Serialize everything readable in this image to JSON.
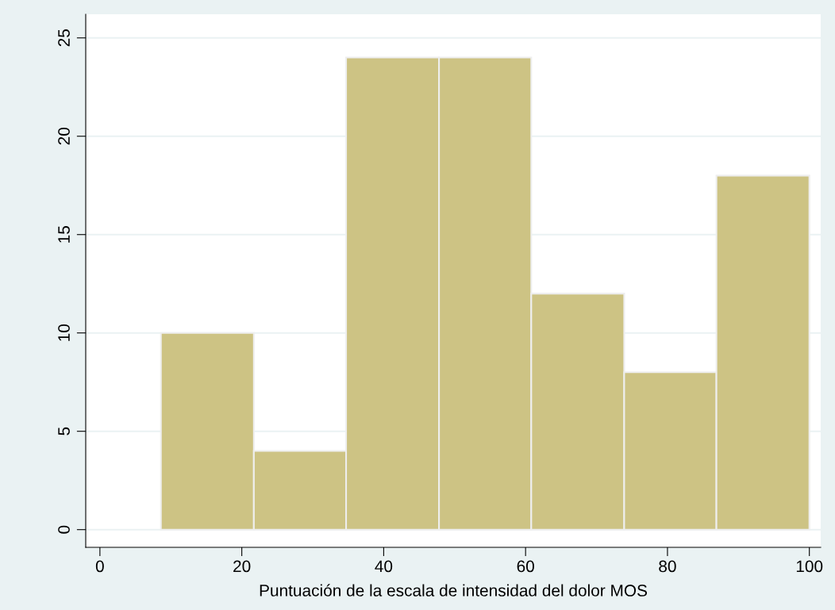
{
  "chart_data": {
    "type": "histogram",
    "xlabel": "Puntuación de la escala de intensidad del dolor MOS",
    "bins": [
      8.6,
      21.7,
      34.7,
      47.8,
      60.8,
      73.9,
      86.9,
      100
    ],
    "values": [
      10,
      4,
      24,
      24,
      12,
      8,
      18
    ],
    "color": "#cdc384",
    "xlim": [
      -2,
      101.6
    ],
    "ylim": [
      -0.9,
      26.2
    ],
    "xticks": [
      0,
      20,
      40,
      60,
      80,
      100
    ],
    "yticks": [
      0,
      5,
      10,
      15,
      20,
      25
    ],
    "grid": "y"
  }
}
